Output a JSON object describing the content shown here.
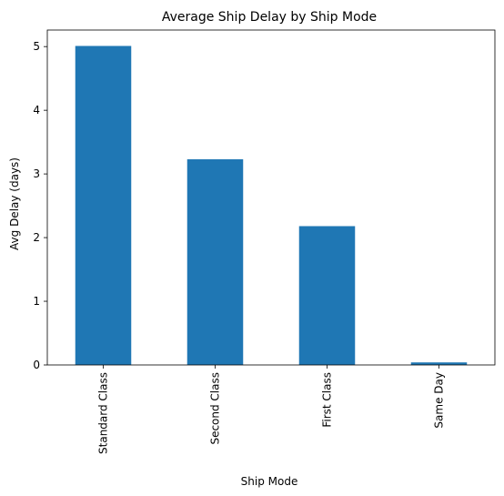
{
  "chart_data": {
    "type": "bar",
    "title": "Average Ship Delay by Ship Mode",
    "xlabel": "Ship Mode",
    "ylabel": "Avg Delay (days)",
    "categories": [
      "Standard Class",
      "Second Class",
      "First Class",
      "Same Day"
    ],
    "values": [
      5.01,
      3.23,
      2.18,
      0.04
    ],
    "ylim": [
      0,
      5.26
    ],
    "yticks": [
      "0",
      "1",
      "2",
      "3",
      "4",
      "5"
    ],
    "grid": false,
    "bar_color": "#1f77b4"
  }
}
